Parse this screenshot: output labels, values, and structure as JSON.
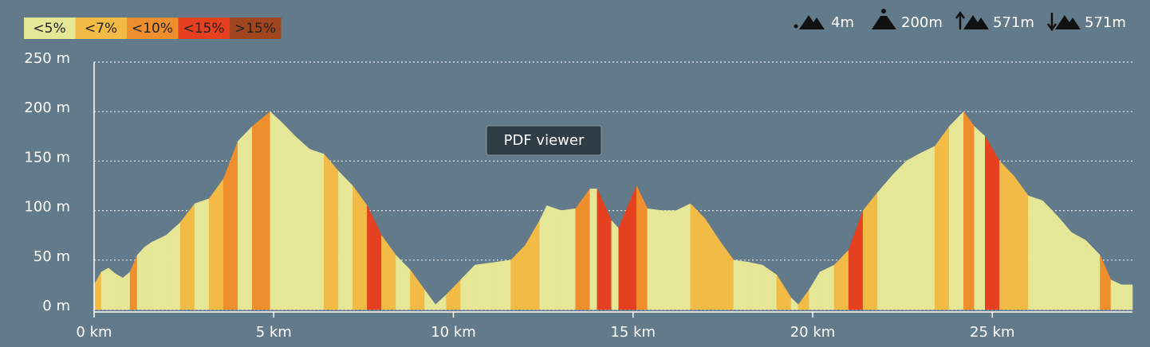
{
  "chart_data": {
    "type": "area",
    "legend": [
      {
        "label": "<5%",
        "color": "#e6e697"
      },
      {
        "label": "<7%",
        "color": "#f2bb45"
      },
      {
        "label": "<10%",
        "color": "#ee8e2d"
      },
      {
        "label": "<15%",
        "color": "#e5401f"
      },
      {
        "label": ">15%",
        "color": "#a0451d"
      }
    ],
    "stats": [
      "4m",
      "200m",
      "571m",
      "571m"
    ],
    "x": [
      0,
      0.2,
      0.4,
      0.6,
      0.8,
      1.0,
      1.2,
      1.4,
      1.6,
      2.0,
      2.4,
      2.8,
      3.2,
      3.6,
      4.0,
      4.4,
      4.9,
      5.2,
      5.6,
      6.0,
      6.4,
      6.8,
      7.2,
      7.6,
      8.0,
      8.4,
      8.8,
      9.2,
      9.5,
      9.8,
      10.2,
      10.6,
      11.2,
      11.6,
      12.0,
      12.4,
      12.6,
      13.0,
      13.4,
      13.8,
      14.0,
      14.4,
      14.6,
      14.8,
      15.1,
      15.4,
      15.8,
      16.2,
      16.6,
      17.0,
      17.4,
      17.8,
      18.2,
      18.6,
      19.0,
      19.4,
      19.6,
      19.9,
      20.2,
      20.6,
      21.0,
      21.4,
      21.8,
      22.2,
      22.6,
      23.0,
      23.4,
      23.8,
      24.2,
      24.5,
      24.8,
      25.2,
      25.6,
      26.0,
      26.4,
      26.8,
      27.2,
      27.6,
      28.0,
      28.3,
      28.6,
      28.9
    ],
    "values": [
      25,
      38,
      42,
      36,
      32,
      38,
      55,
      63,
      68,
      75,
      88,
      107,
      112,
      132,
      170,
      185,
      200,
      190,
      175,
      162,
      157,
      140,
      125,
      105,
      75,
      55,
      40,
      20,
      5,
      15,
      30,
      45,
      48,
      50,
      65,
      90,
      105,
      100,
      102,
      122,
      122,
      90,
      82,
      100,
      125,
      102,
      100,
      100,
      107,
      92,
      70,
      50,
      48,
      45,
      35,
      12,
      5,
      20,
      38,
      45,
      60,
      100,
      118,
      135,
      150,
      158,
      165,
      185,
      200,
      185,
      175,
      150,
      135,
      115,
      110,
      95,
      78,
      70,
      55,
      30,
      25,
      25
    ],
    "gradient_class": [
      1,
      0,
      0,
      0,
      0,
      2,
      0,
      0,
      0,
      0,
      1,
      0,
      1,
      2,
      0,
      2,
      0,
      0,
      0,
      0,
      1,
      0,
      1,
      3,
      1,
      0,
      1,
      0,
      0,
      1,
      0,
      0,
      0,
      1,
      1,
      0,
      0,
      0,
      2,
      0,
      3,
      0,
      3,
      3,
      2,
      0,
      0,
      0,
      1,
      1,
      1,
      0,
      0,
      0,
      1,
      0,
      1,
      0,
      0,
      1,
      3,
      1,
      0,
      0,
      0,
      0,
      1,
      0,
      2,
      0,
      3,
      1,
      1,
      0,
      0,
      0,
      0,
      0,
      2,
      0,
      0
    ],
    "xlim": [
      0,
      28.9
    ],
    "ylim": [
      0,
      250
    ],
    "xticks": [
      {
        "value": 0,
        "label": "0 km"
      },
      {
        "value": 5,
        "label": "5 km"
      },
      {
        "value": 10,
        "label": "10 km"
      },
      {
        "value": 15,
        "label": "15 km"
      },
      {
        "value": 20,
        "label": "20 km"
      },
      {
        "value": 25,
        "label": "25 km"
      }
    ],
    "yticks": [
      {
        "value": 0,
        "label": "0 m"
      },
      {
        "value": 50,
        "label": "50 m"
      },
      {
        "value": 100,
        "label": "100 m"
      },
      {
        "value": 150,
        "label": "150 m"
      },
      {
        "value": 200,
        "label": "200 m"
      },
      {
        "value": 250,
        "label": "250 m"
      }
    ],
    "grid": true
  },
  "tooltip": "PDF viewer"
}
